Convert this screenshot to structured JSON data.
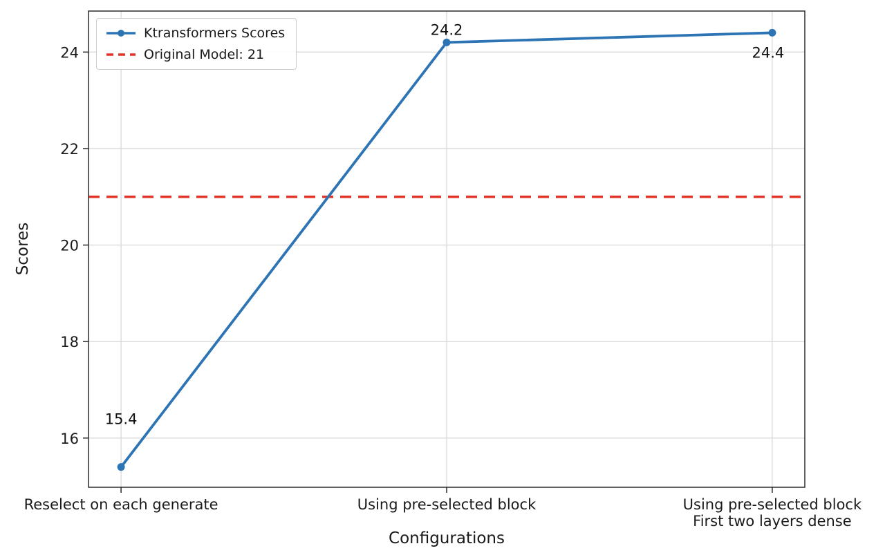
{
  "chart_data": {
    "type": "line",
    "title": "",
    "xlabel": "Configurations",
    "ylabel": "Scores",
    "categories": [
      "Reselect on each generate",
      "Using pre-selected block",
      "Using pre-selected block\nFirst two layers dense"
    ],
    "series": [
      {
        "name": "Ktransformers Scores",
        "values": [
          15.4,
          24.2,
          24.4
        ],
        "color": "#2d74b5",
        "marker": "circle"
      }
    ],
    "ref_line": {
      "label": "Original Model: 21",
      "value": 21,
      "color": "#e23328",
      "style": "dashed"
    },
    "annotations": [
      "15.4",
      "24.2",
      "24.4"
    ],
    "yticks": [
      16,
      18,
      20,
      22,
      24
    ],
    "ylim": [
      14.98,
      24.85
    ],
    "grid": true,
    "legend_position": "upper left",
    "colors": {
      "grid": "#d9d9d9",
      "axis": "#2b2b2b",
      "text": "#1a1a1a"
    }
  }
}
